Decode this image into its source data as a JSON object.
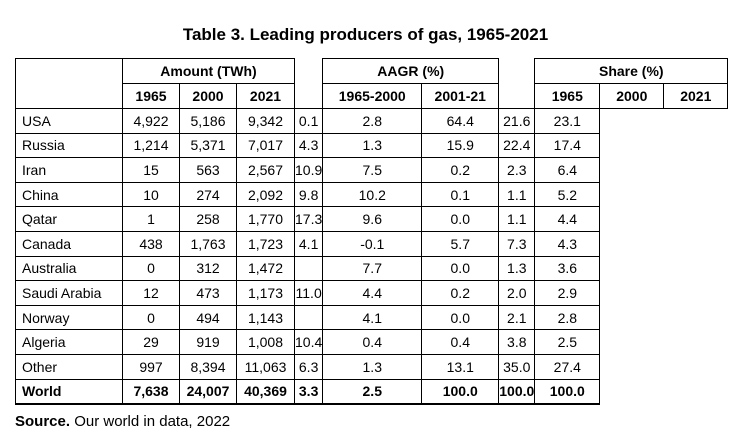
{
  "title": "Table 3. Leading producers of gas, 1965-2021",
  "groups": {
    "amount": "Amount (TWh)",
    "aagr": "AAGR (%)",
    "share": "Share (%)"
  },
  "subheaders": {
    "amount": [
      "1965",
      "2000",
      "2021"
    ],
    "aagr": [
      "1965-2000",
      "2001-21"
    ],
    "share": [
      "1965",
      "2000",
      "2021"
    ]
  },
  "rows": [
    {
      "country": "USA",
      "amount": [
        "4,922",
        "5,186",
        "9,342"
      ],
      "aagr": [
        "0.1",
        "2.8"
      ],
      "share": [
        "64.4",
        "21.6",
        "23.1"
      ]
    },
    {
      "country": "Russia",
      "amount": [
        "1,214",
        "5,371",
        "7,017"
      ],
      "aagr": [
        "4.3",
        "1.3"
      ],
      "share": [
        "15.9",
        "22.4",
        "17.4"
      ]
    },
    {
      "country": "Iran",
      "amount": [
        "15",
        "563",
        "2,567"
      ],
      "aagr": [
        "10.9",
        "7.5"
      ],
      "share": [
        "0.2",
        "2.3",
        "6.4"
      ]
    },
    {
      "country": "China",
      "amount": [
        "10",
        "274",
        "2,092"
      ],
      "aagr": [
        "9.8",
        "10.2"
      ],
      "share": [
        "0.1",
        "1.1",
        "5.2"
      ]
    },
    {
      "country": "Qatar",
      "amount": [
        "1",
        "258",
        "1,770"
      ],
      "aagr": [
        "17.3",
        "9.6"
      ],
      "share": [
        "0.0",
        "1.1",
        "4.4"
      ]
    },
    {
      "country": "Canada",
      "amount": [
        "438",
        "1,763",
        "1,723"
      ],
      "aagr": [
        "4.1",
        "-0.1"
      ],
      "share": [
        "5.7",
        "7.3",
        "4.3"
      ]
    },
    {
      "country": "Australia",
      "amount": [
        "0",
        "312",
        "1,472"
      ],
      "aagr": [
        "",
        "7.7"
      ],
      "share": [
        "0.0",
        "1.3",
        "3.6"
      ]
    },
    {
      "country": "Saudi Arabia",
      "amount": [
        "12",
        "473",
        "1,173"
      ],
      "aagr": [
        "11.0",
        "4.4"
      ],
      "share": [
        "0.2",
        "2.0",
        "2.9"
      ]
    },
    {
      "country": "Norway",
      "amount": [
        "0",
        "494",
        "1,143"
      ],
      "aagr": [
        "",
        "4.1"
      ],
      "share": [
        "0.0",
        "2.1",
        "2.8"
      ]
    },
    {
      "country": "Algeria",
      "amount": [
        "29",
        "919",
        "1,008"
      ],
      "aagr": [
        "10.4",
        "0.4"
      ],
      "share": [
        "0.4",
        "3.8",
        "2.5"
      ]
    },
    {
      "country": "Other",
      "amount": [
        "997",
        "8,394",
        "11,063"
      ],
      "aagr": [
        "6.3",
        "1.3"
      ],
      "share": [
        "13.1",
        "35.0",
        "27.4"
      ]
    }
  ],
  "world": {
    "country": "World",
    "amount": [
      "7,638",
      "24,007",
      "40,369"
    ],
    "aagr": [
      "3.3",
      "2.5"
    ],
    "share": [
      "100.0",
      "100.0",
      "100.0"
    ]
  },
  "source": {
    "label": "Source.",
    "text": " Our world in data, 2022"
  }
}
